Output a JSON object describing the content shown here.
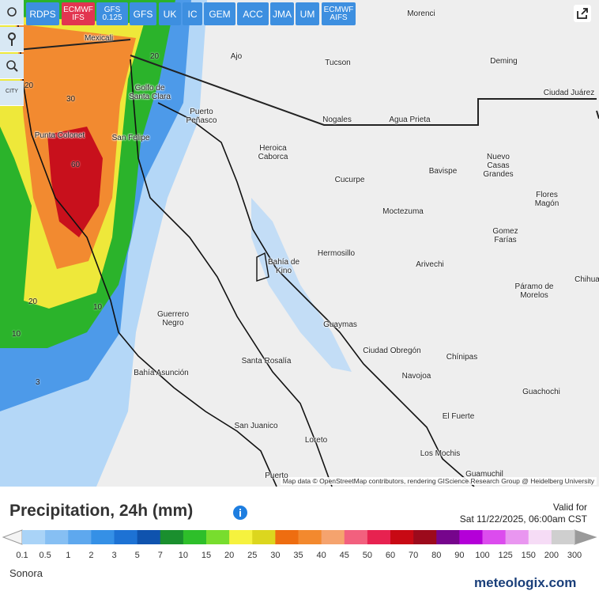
{
  "toolbar": {
    "city_button": "CITY",
    "models": [
      [
        "RDPS"
      ],
      [
        "ECMWF",
        "IFS"
      ],
      [
        "GFS",
        "0.125"
      ],
      [
        "GFS"
      ],
      [
        "UK"
      ],
      [
        "IC"
      ],
      [
        "GEM"
      ],
      [
        "ACC"
      ],
      [
        "JMA"
      ],
      [
        "UM"
      ],
      [
        "ECMWF",
        "AIFS"
      ]
    ]
  },
  "map": {
    "cities": [
      "Morenci",
      "Mexicali",
      "Ajo",
      "Tucson",
      "Deming",
      "Golfo de Santa Clara",
      "Ciudad Juárez",
      "Puerto Peñasco",
      "Nogales",
      "Agua Prieta",
      "Punta Colonet",
      "San Felipe",
      "Heroica Caborca",
      "Bavispe",
      "Nuevo Casas Grandes",
      "Cucurpe",
      "Flores Magón",
      "Moctezuma",
      "Gomez Farías",
      "Hermosillo",
      "Bahía de Kino",
      "Arivechi",
      "Chihua",
      "Páramo de Morelos",
      "Guerrero Negro",
      "Guaymas",
      "Ciudad Obregón",
      "Chínipas",
      "Santa Rosalía",
      "Navojoa",
      "Bahía Asunción",
      "Guachochi",
      "El Fuerte",
      "San Juanico",
      "Loreto",
      "Los Mochis",
      "Guamuchil",
      "Puerto"
    ],
    "contours": [
      20,
      20,
      30,
      60,
      20,
      10,
      10,
      3
    ],
    "attribution": "Map data © OpenStreetMap contributors, rendering GIScience Research Group @ Heidelberg University"
  },
  "legend": {
    "title": "Precipitation, 24h (mm)",
    "valid_label": "Valid for",
    "valid_time": "Sat 11/22/2025, 06:00am CST",
    "labels": [
      0.1,
      0.5,
      1,
      2,
      3,
      5,
      7,
      10,
      15,
      20,
      25,
      30,
      35,
      40,
      45,
      50,
      60,
      70,
      80,
      90,
      100,
      125,
      150,
      200,
      300
    ],
    "colors": [
      "#a9d3f7",
      "#86bff3",
      "#5ea8ee",
      "#3590e6",
      "#1d72d4",
      "#0f53ae",
      "#1a8f2e",
      "#2ebf2a",
      "#78dd2e",
      "#f6f23e",
      "#dcd61e",
      "#ee6d10",
      "#f3892e",
      "#f5a36e",
      "#f2607e",
      "#e72250",
      "#c80914",
      "#9c0a1c",
      "#76058c",
      "#b400d8",
      "#dc4cee",
      "#e996f0",
      "#f6dcf6",
      "#cfcfcf"
    ]
  },
  "footer": {
    "region": "Sonora",
    "logo": "meteologix.com"
  }
}
